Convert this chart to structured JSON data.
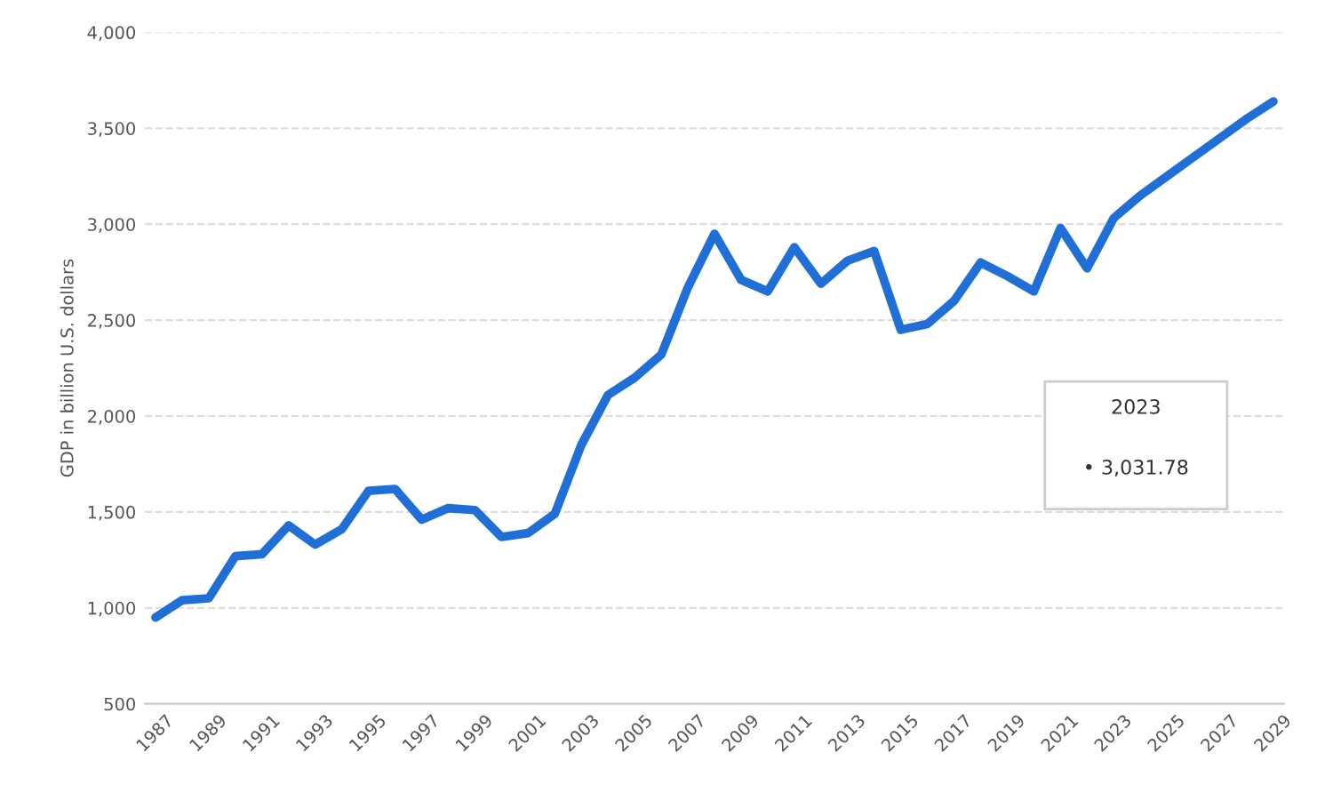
{
  "chart_data": {
    "type": "line",
    "ylabel": "GDP in billion U.S. dollars",
    "x": [
      1987,
      1988,
      1989,
      1990,
      1991,
      1992,
      1993,
      1994,
      1995,
      1996,
      1997,
      1998,
      1999,
      2000,
      2001,
      2002,
      2003,
      2004,
      2005,
      2006,
      2007,
      2008,
      2009,
      2010,
      2011,
      2012,
      2013,
      2014,
      2015,
      2016,
      2017,
      2018,
      2019,
      2020,
      2021,
      2022,
      2023,
      2024,
      2025,
      2026,
      2027,
      2028,
      2029
    ],
    "series": [
      {
        "color": "#1f6fd6",
        "values": [
          950,
          1040,
          1050,
          1270,
          1280,
          1430,
          1330,
          1410,
          1610,
          1620,
          1460,
          1520,
          1510,
          1370,
          1390,
          1490,
          1850,
          2110,
          2200,
          2320,
          2670,
          2950,
          2710,
          2650,
          2880,
          2690,
          2810,
          2860,
          2450,
          2480,
          2600,
          2800,
          2730,
          2650,
          2980,
          2770,
          3031.78,
          3150,
          3250,
          3350,
          3450,
          3550,
          3640
        ]
      }
    ],
    "xlim": [
      1986.6,
      2029.4
    ],
    "xticks": [
      1987,
      1989,
      1991,
      1993,
      1995,
      1997,
      1999,
      2001,
      2003,
      2005,
      2007,
      2009,
      2011,
      2013,
      2015,
      2017,
      2019,
      2021,
      2023,
      2025,
      2027,
      2029
    ],
    "ylim": [
      500,
      4000
    ],
    "yticks": [
      {
        "value": 500,
        "label": "500"
      },
      {
        "value": 1000,
        "label": "1,000"
      },
      {
        "value": 1500,
        "label": "1,500"
      },
      {
        "value": 2000,
        "label": "2,000"
      },
      {
        "value": 2500,
        "label": "2,500"
      },
      {
        "value": 3000,
        "label": "3,000"
      },
      {
        "value": 3500,
        "label": "3,500"
      },
      {
        "value": 4000,
        "label": "4,000"
      }
    ],
    "grid": "y",
    "line_style": "solid",
    "annotations": [
      "2023",
      "• 3,031.78"
    ]
  }
}
